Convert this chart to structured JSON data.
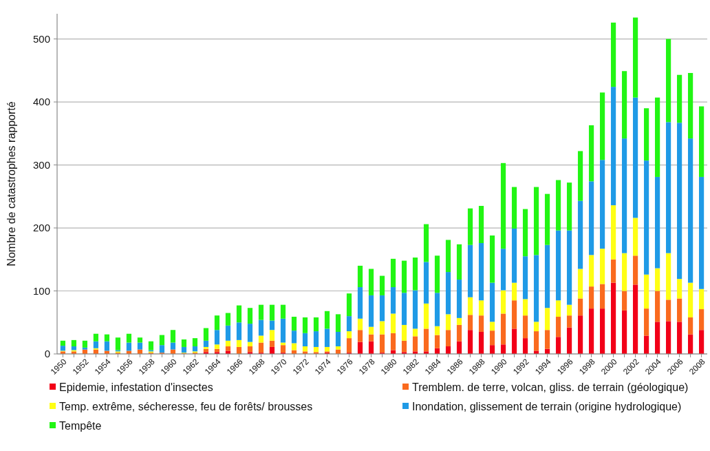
{
  "chart_data": {
    "type": "bar",
    "stacked": true,
    "ylabel": "Nombre de catastrophes rapporté",
    "categories": [
      "1950",
      null,
      "1952",
      null,
      "1954",
      null,
      "1956",
      null,
      "1958",
      null,
      "1960",
      null,
      "1962",
      null,
      "1964",
      null,
      "1966",
      null,
      "1968",
      null,
      "1970",
      null,
      "1972",
      null,
      "1974",
      null,
      "1976",
      null,
      "1978",
      null,
      "1980",
      null,
      "1982",
      null,
      "1984",
      null,
      "1986",
      null,
      "1988",
      null,
      "1990",
      null,
      "1992",
      null,
      "1994",
      null,
      "1996",
      null,
      "1998",
      null,
      "2000",
      null,
      "2002",
      null,
      "2004",
      null,
      "2006",
      null,
      "2008"
    ],
    "series": [
      {
        "name": "Epidemie, infestation d'insectes",
        "color": "#f20018",
        "values": [
          0,
          0,
          0,
          0,
          0,
          0,
          0,
          0,
          0,
          0,
          0,
          0,
          0,
          3,
          3,
          5,
          0,
          3,
          2,
          11,
          2,
          0,
          0,
          0,
          2,
          0,
          2,
          19,
          20,
          2,
          6,
          3,
          4,
          4,
          9,
          12,
          20,
          38,
          35,
          14,
          15,
          40,
          25,
          5,
          8,
          27,
          42,
          61,
          72,
          72,
          113,
          69,
          110,
          29,
          51,
          52,
          51,
          31,
          38
        ]
      },
      {
        "name": "Tremblem. de terre, volcan, gliss. de terrain (géologique)",
        "color": "#fa6a1e",
        "values": [
          4,
          4,
          7,
          7,
          5,
          2,
          5,
          7,
          2,
          2,
          7,
          1,
          2,
          5,
          5,
          7,
          11,
          9,
          16,
          10,
          12,
          6,
          4,
          3,
          2,
          7,
          23,
          19,
          11,
          29,
          27,
          18,
          24,
          36,
          21,
          26,
          26,
          24,
          26,
          23,
          49,
          45,
          36,
          31,
          30,
          32,
          19,
          27,
          35,
          39,
          37,
          31,
          46,
          43,
          49,
          34,
          37,
          27,
          33
        ]
      },
      {
        "name": "Temp. extrême, sécheresse, feu de forêts/ brousses",
        "color": "#ffff14",
        "values": [
          1,
          2,
          0,
          2,
          0,
          2,
          0,
          0,
          2,
          0,
          0,
          1,
          2,
          3,
          7,
          9,
          11,
          7,
          11,
          17,
          4,
          11,
          8,
          8,
          7,
          5,
          11,
          18,
          12,
          21,
          31,
          25,
          12,
          40,
          14,
          25,
          11,
          28,
          24,
          14,
          37,
          28,
          26,
          15,
          35,
          26,
          17,
          47,
          50,
          56,
          86,
          60,
          60,
          54,
          36,
          74,
          31,
          55,
          32
        ]
      },
      {
        "name": "Inondation, glissement de terrain (origine hydrologique)",
        "color": "#1f9ae6",
        "values": [
          8,
          6,
          3,
          11,
          15,
          2,
          13,
          11,
          2,
          12,
          11,
          9,
          8,
          10,
          23,
          24,
          28,
          29,
          25,
          15,
          38,
          20,
          21,
          25,
          29,
          23,
          24,
          50,
          50,
          41,
          42,
          51,
          61,
          66,
          53,
          67,
          61,
          83,
          91,
          62,
          66,
          86,
          68,
          106,
          100,
          111,
          118,
          108,
          117,
          141,
          188,
          182,
          191,
          181,
          145,
          208,
          248,
          229,
          178
        ]
      },
      {
        "name": "Tempête",
        "color": "#22f514",
        "values": [
          8,
          10,
          11,
          12,
          11,
          20,
          14,
          8,
          14,
          16,
          20,
          12,
          13,
          20,
          23,
          20,
          27,
          25,
          24,
          25,
          22,
          22,
          25,
          22,
          28,
          28,
          36,
          34,
          42,
          31,
          45,
          51,
          52,
          60,
          59,
          51,
          56,
          58,
          59,
          75,
          136,
          66,
          75,
          108,
          81,
          80,
          76,
          79,
          89,
          107,
          102,
          107,
          127,
          83,
          126,
          132,
          76,
          104,
          112
        ]
      }
    ],
    "ylim": [
      0,
      540
    ],
    "yticks": [
      0,
      100,
      200,
      300,
      400,
      500
    ],
    "grid": "y",
    "legend": "bottom"
  }
}
